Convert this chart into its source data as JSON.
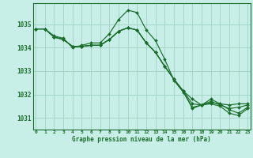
{
  "title": "Graphe pression niveau de la mer (hPa)",
  "bg_color": "#c8eee8",
  "grid_color": "#99ccbb",
  "line_color": "#1a6e2a",
  "x_ticks": [
    0,
    1,
    2,
    3,
    4,
    5,
    6,
    7,
    8,
    9,
    10,
    11,
    12,
    13,
    14,
    15,
    16,
    17,
    18,
    19,
    20,
    21,
    22,
    23
  ],
  "ylim": [
    1030.5,
    1035.9
  ],
  "yticks": [
    1031,
    1032,
    1033,
    1034,
    1035
  ],
  "series": [
    [
      1034.8,
      1034.8,
      1034.5,
      1034.4,
      1034.0,
      1034.1,
      1034.2,
      1034.2,
      1034.6,
      1035.2,
      1035.6,
      1035.5,
      1034.75,
      1034.3,
      1033.5,
      1032.6,
      1032.1,
      1031.45,
      1031.55,
      1031.6,
      1031.5,
      1031.2,
      1031.1,
      1031.4
    ],
    [
      1034.8,
      1034.8,
      1034.45,
      1034.35,
      1034.05,
      1034.05,
      1034.1,
      1034.1,
      1034.35,
      1034.7,
      1034.85,
      1034.75,
      1034.2,
      1033.8,
      1033.2,
      1032.65,
      1032.15,
      1031.8,
      1031.55,
      1031.65,
      1031.6,
      1031.35,
      1031.2,
      1031.45
    ],
    [
      1034.8,
      1034.8,
      1034.45,
      1034.35,
      1034.05,
      1034.05,
      1034.1,
      1034.1,
      1034.35,
      1034.7,
      1034.85,
      1034.75,
      1034.2,
      1033.8,
      1033.2,
      1032.65,
      1032.15,
      1031.6,
      1031.55,
      1031.7,
      1031.55,
      1031.4,
      1031.45,
      1031.55
    ],
    [
      1034.8,
      1034.8,
      1034.45,
      1034.35,
      1034.05,
      1034.05,
      1034.1,
      1034.1,
      1034.35,
      1034.7,
      1034.85,
      1034.75,
      1034.2,
      1033.8,
      1033.2,
      1032.65,
      1032.15,
      1031.4,
      1031.55,
      1031.8,
      1031.6,
      1031.55,
      1031.6,
      1031.6
    ]
  ]
}
